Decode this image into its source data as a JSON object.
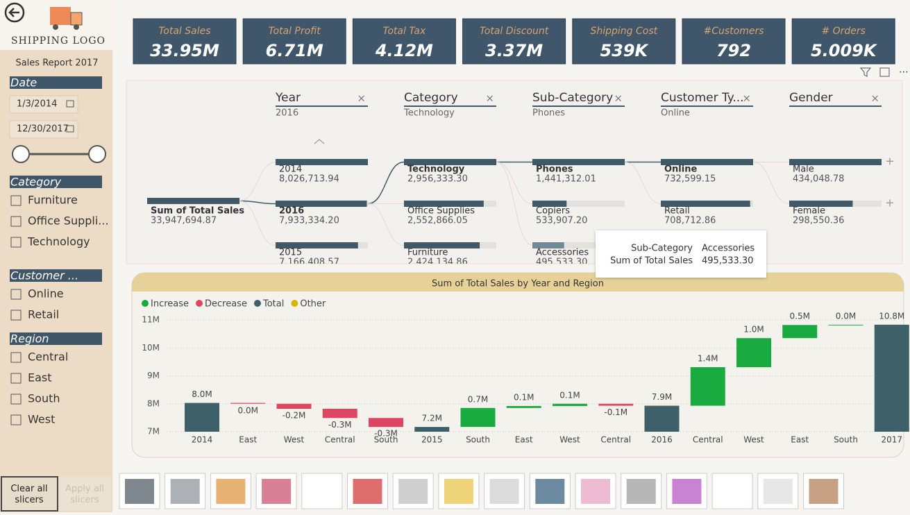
{
  "sidebar": {
    "logo": "SHIPPING LOGO",
    "report_title": "Sales Report 2017",
    "date_slicer": {
      "title": "Date",
      "start": "1/3/2014",
      "end": "12/30/2017"
    },
    "slicers": [
      {
        "title": "Category",
        "options": [
          "Furniture",
          "Office Suppli...",
          "Technology"
        ]
      },
      {
        "title": "Customer ...",
        "options": [
          "Online",
          "Retail"
        ]
      },
      {
        "title": "Region",
        "options": [
          "Central",
          "East",
          "South",
          "West"
        ]
      }
    ],
    "buttons": [
      "Clear all slicers",
      "Apply all slicers"
    ]
  },
  "kpis": [
    {
      "label": "Total Sales",
      "value": "33.95M"
    },
    {
      "label": "Total Profit",
      "value": "6.71M"
    },
    {
      "label": "Total Tax",
      "value": "4.12M"
    },
    {
      "label": "Total Discount",
      "value": "3.37M"
    },
    {
      "label": "Shipping Cost",
      "value": "539K"
    },
    {
      "label": "#Customers",
      "value": "792"
    },
    {
      "label": "# Orders",
      "value": "5.009K"
    }
  ],
  "decomposition_tree": {
    "root": {
      "label": "Sum of Total Sales",
      "value": 33947694.87,
      "value_label": "33,947,694.87"
    },
    "levels": [
      {
        "name": "Year",
        "selected": "2016",
        "nodes": [
          {
            "label": "2014",
            "value": 8026713.94,
            "value_label": "8,026,713.94"
          },
          {
            "label": "2016",
            "value": 7933334.2,
            "value_label": "7,933,334.20"
          },
          {
            "label": "2015",
            "value": 7166408.57,
            "value_label": "7,166,408.57"
          }
        ]
      },
      {
        "name": "Category",
        "selected": "Technology",
        "nodes": [
          {
            "label": "Technology",
            "value": 2956333.3,
            "value_label": "2,956,333.30"
          },
          {
            "label": "Office Supplies",
            "value": 2552866.05,
            "value_label": "2,552,866.05"
          },
          {
            "label": "Furniture",
            "value": 2424134.86,
            "value_label": "2,424,134.86"
          }
        ]
      },
      {
        "name": "Sub-Category",
        "selected": "Phones",
        "nodes": [
          {
            "label": "Phones",
            "value": 1441312.01,
            "value_label": "1,441,312.01"
          },
          {
            "label": "Copiers",
            "value": 533907.2,
            "value_label": "533,907.20"
          },
          {
            "label": "Accessories",
            "value": 495533.3,
            "value_label": "495,533.30"
          }
        ]
      },
      {
        "name": "Customer Ty...",
        "selected": "Online",
        "nodes": [
          {
            "label": "Online",
            "value": 732599.15,
            "value_label": "732,599.15"
          },
          {
            "label": "Retail",
            "value": 708712.86,
            "value_label": "708,712.86"
          }
        ]
      },
      {
        "name": "Gender",
        "nodes": [
          {
            "label": "Male",
            "value": 434048.78,
            "value_label": "434,048.78"
          },
          {
            "label": "Female",
            "value": 298550.36,
            "value_label": "298,550.36"
          }
        ]
      }
    ],
    "tooltip": [
      [
        "Sub-Category",
        "Accessories"
      ],
      [
        "Sum of Total Sales",
        "495,533.30"
      ]
    ]
  },
  "chart_data": {
    "type": "waterfall",
    "title": "Sum of Total Sales by Year and Region",
    "legend": [
      {
        "name": "Increase",
        "color": "#1aab40"
      },
      {
        "name": "Decrease",
        "color": "#df4560"
      },
      {
        "name": "Total",
        "color": "#3e6068"
      },
      {
        "name": "Other",
        "color": "#d6b400"
      }
    ],
    "categories": [
      "2014",
      "East",
      "West",
      "Central",
      "South",
      "2015",
      "South",
      "East",
      "West",
      "Central",
      "2016",
      "Central",
      "West",
      "East",
      "South",
      "2017"
    ],
    "kinds": [
      "Total",
      "Decrease",
      "Decrease",
      "Decrease",
      "Decrease",
      "Total",
      "Increase",
      "Increase",
      "Increase",
      "Decrease",
      "Total",
      "Increase",
      "Increase",
      "Increase",
      "Increase",
      "Total"
    ],
    "values": [
      8.03,
      -0.03,
      -0.18,
      -0.33,
      -0.32,
      7.17,
      0.68,
      0.07,
      0.08,
      -0.07,
      7.93,
      1.38,
      1.04,
      0.47,
      0.01,
      10.83
    ],
    "value_labels": [
      "8.0M",
      "0.0M",
      "-0.2M",
      "-0.3M",
      "-0.3M",
      "7.2M",
      "0.7M",
      "0.1M",
      "0.1M",
      "-0.1M",
      "7.9M",
      "1.4M",
      "1.0M",
      "0.5M",
      "0.0M",
      "10.8M"
    ],
    "ylim": [
      7,
      11
    ],
    "yticks": [
      {
        "value": 7,
        "label": "7M"
      },
      {
        "value": 8,
        "label": "8M"
      },
      {
        "value": 9,
        "label": "9M"
      },
      {
        "value": 10,
        "label": "10M"
      },
      {
        "value": 11,
        "label": "11M"
      }
    ],
    "grid": true
  }
}
